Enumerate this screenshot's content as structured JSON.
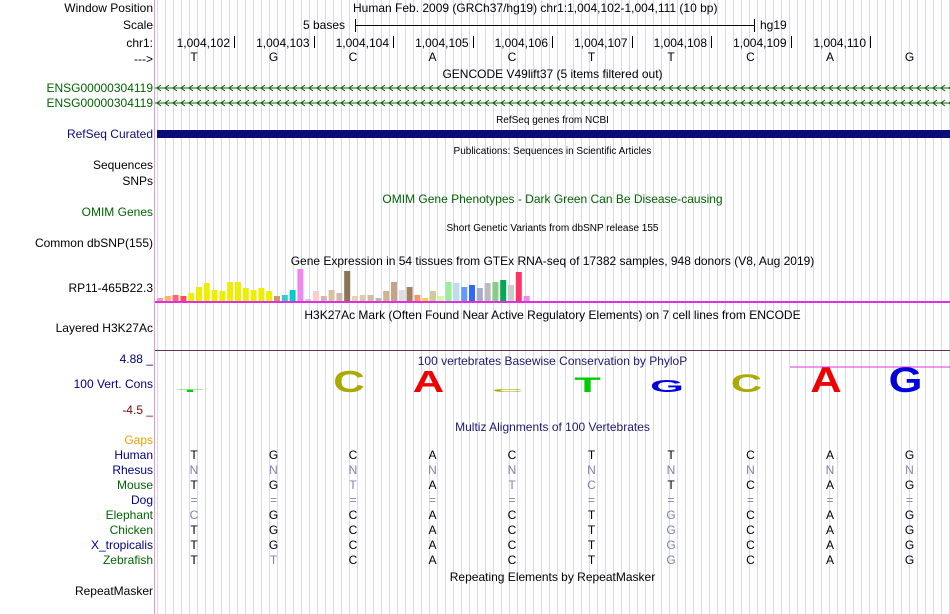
{
  "header": {
    "window_position_label": "Window Position",
    "scale_label": "Scale",
    "chrom_label": "chr1:",
    "strand_label": "--->",
    "assembly_text": "Human Feb. 2009 (GRCh37/hg19)   chr1:1,004,102-1,004,111 (10 bp)",
    "scale_text": "5 bases",
    "scale_db": "hg19"
  },
  "ruler": {
    "positions": [
      "1,004,102",
      "1,004,103",
      "1,004,104",
      "1,004,105",
      "1,004,106",
      "1,004,107",
      "1,004,108",
      "1,004,109",
      "1,004,110"
    ],
    "bases": [
      "T",
      "G",
      "C",
      "A",
      "C",
      "T",
      "T",
      "C",
      "A",
      "G"
    ]
  },
  "tracks": {
    "gencode": {
      "title": "GENCODE V49lift37 (5 items filtered out)",
      "items": [
        "ENSG00000304119",
        "ENSG00000304119"
      ]
    },
    "refseq": {
      "title": "RefSeq genes from NCBI",
      "label": "RefSeq Curated",
      "color": "#0c0c78"
    },
    "publications": {
      "title": "Publications: Sequences in Scientific Articles",
      "labels": [
        "Sequences",
        "SNPs"
      ]
    },
    "omim": {
      "title": "OMIM Gene Phenotypes - Dark Green Can Be Disease-causing",
      "label": "OMIM Genes",
      "color": "#006400"
    },
    "dbsnp": {
      "title": "Short Genetic Variants from dbSNP release 155",
      "label": "Common dbSNP(155)"
    },
    "gtex": {
      "title": "Gene Expression in 54 tissues from GTEx RNA-seq of 17382 samples, 948 donors (V8, Aug 2019)",
      "label": "RP11-465B22.3",
      "bars": [
        {
          "v": 0.1,
          "c": "#ff9999"
        },
        {
          "v": 0.15,
          "c": "#ffb366"
        },
        {
          "v": 0.2,
          "c": "#ff6666"
        },
        {
          "v": 0.15,
          "c": "#ff4d4d"
        },
        {
          "v": 0.25,
          "c": "#eeee00"
        },
        {
          "v": 0.45,
          "c": "#eeee00"
        },
        {
          "v": 0.55,
          "c": "#eeee00"
        },
        {
          "v": 0.35,
          "c": "#eeee00"
        },
        {
          "v": 0.3,
          "c": "#eeee00"
        },
        {
          "v": 0.6,
          "c": "#eeee00"
        },
        {
          "v": 0.6,
          "c": "#eeee00"
        },
        {
          "v": 0.4,
          "c": "#eeee00"
        },
        {
          "v": 0.35,
          "c": "#eeee00"
        },
        {
          "v": 0.4,
          "c": "#eeee00"
        },
        {
          "v": 0.3,
          "c": "#eeee00"
        },
        {
          "v": 0.15,
          "c": "#cc9966"
        },
        {
          "v": 0.2,
          "c": "#33cccc"
        },
        {
          "v": 0.35,
          "c": "#00cccc"
        },
        {
          "v": 1.0,
          "c": "#ee88ee"
        },
        {
          "v": 0.05,
          "c": "#cccccc"
        },
        {
          "v": 0.3,
          "c": "#ffcccc"
        },
        {
          "v": 0.15,
          "c": "#d9b3b3"
        },
        {
          "v": 0.35,
          "c": "#d9c1a0"
        },
        {
          "v": 0.25,
          "c": "#ccbbaa"
        },
        {
          "v": 0.95,
          "c": "#8b7355"
        },
        {
          "v": 0.15,
          "c": "#e6d2b4"
        },
        {
          "v": 0.2,
          "c": "#e0c9a6"
        },
        {
          "v": 0.2,
          "c": "#ccc0a0"
        },
        {
          "v": 0.1,
          "c": "#bbbbaa"
        },
        {
          "v": 0.3,
          "c": "#d2b48c"
        },
        {
          "v": 0.6,
          "c": "#c4a484"
        },
        {
          "v": 0.35,
          "c": "#dddddd"
        },
        {
          "v": 0.45,
          "c": "#a08060"
        },
        {
          "v": 0.2,
          "c": "#ee9966"
        },
        {
          "v": 0.1,
          "c": "#ffcc33"
        },
        {
          "v": 0.3,
          "c": "#cccc99"
        },
        {
          "v": 0.15,
          "c": "#ccff99"
        },
        {
          "v": 0.6,
          "c": "#99ee99"
        },
        {
          "v": 0.55,
          "c": "#bbddee"
        },
        {
          "v": 0.45,
          "c": "#6699ff"
        },
        {
          "v": 0.5,
          "c": "#3366ff"
        },
        {
          "v": 0.4,
          "c": "#aaaacc"
        },
        {
          "v": 0.55,
          "c": "#bbbbbb"
        },
        {
          "v": 0.6,
          "c": "#88cc88"
        },
        {
          "v": 0.65,
          "c": "#00aa55"
        },
        {
          "v": 0.5,
          "c": "#cccccc"
        },
        {
          "v": 0.9,
          "c": "#ff3366"
        },
        {
          "v": 0.15,
          "c": "#ee88ee"
        }
      ]
    },
    "h3k27ac": {
      "title": "H3K27Ac Mark (Often Found Near Active Regulatory Elements) on 7 cell lines from ENCODE",
      "label": "Layered H3K27Ac"
    },
    "conservation": {
      "title": "100 vertebrates Basewise Conservation by PhyloP",
      "label": "100 Vert. Cons",
      "max_label": "4.88 _",
      "min_label": "-4.5 _",
      "logo": [
        {
          "base": "T",
          "h": 0.1,
          "c": "#00cc00"
        },
        {
          "base": "G",
          "h": 0.0,
          "c": "#0000dd"
        },
        {
          "base": "C",
          "h": 0.85,
          "c": "#aaaa00"
        },
        {
          "base": "A",
          "h": 0.85,
          "c": "#ee0000"
        },
        {
          "base": "C",
          "h": 0.12,
          "c": "#aaaa00"
        },
        {
          "base": "T",
          "h": 0.6,
          "c": "#00cc00"
        },
        {
          "base": "G",
          "h": 0.5,
          "c": "#0000dd"
        },
        {
          "base": "C",
          "h": 0.7,
          "c": "#aaaa00"
        },
        {
          "base": "A",
          "h": 1.0,
          "c": "#ee0000"
        },
        {
          "base": "G",
          "h": 1.0,
          "c": "#0000dd"
        }
      ]
    },
    "multiz": {
      "title": "Multiz Alignments of 100 Vertebrates",
      "gaps_label": "Gaps",
      "species": [
        {
          "name": "Human",
          "color": "#000080",
          "seq": [
            "T",
            "G",
            "C",
            "A",
            "C",
            "T",
            "T",
            "C",
            "A",
            "G"
          ],
          "muted": [
            false,
            false,
            false,
            false,
            false,
            false,
            false,
            false,
            false,
            false
          ]
        },
        {
          "name": "Rhesus",
          "color": "#000080",
          "seq": [
            "N",
            "N",
            "N",
            "N",
            "N",
            "N",
            "N",
            "N",
            "N",
            "N"
          ],
          "muted": [
            true,
            true,
            true,
            true,
            true,
            true,
            true,
            true,
            true,
            true
          ]
        },
        {
          "name": "Mouse",
          "color": "#006400",
          "seq": [
            "T",
            "G",
            "T",
            "A",
            "T",
            "C",
            "T",
            "C",
            "A",
            "G"
          ],
          "muted": [
            false,
            false,
            true,
            false,
            true,
            true,
            false,
            false,
            false,
            false
          ]
        },
        {
          "name": "Dog",
          "color": "#000080",
          "seq": [
            "=",
            "=",
            "=",
            "=",
            "=",
            "=",
            "=",
            "=",
            "=",
            "="
          ],
          "muted": [
            true,
            true,
            true,
            true,
            true,
            true,
            true,
            true,
            true,
            true
          ]
        },
        {
          "name": "Elephant",
          "color": "#006400",
          "seq": [
            "C",
            "G",
            "C",
            "A",
            "C",
            "T",
            "G",
            "C",
            "A",
            "G"
          ],
          "muted": [
            true,
            false,
            false,
            false,
            false,
            false,
            true,
            false,
            false,
            false
          ]
        },
        {
          "name": "Chicken",
          "color": "#006400",
          "seq": [
            "T",
            "G",
            "C",
            "A",
            "C",
            "T",
            "G",
            "C",
            "A",
            "G"
          ],
          "muted": [
            false,
            false,
            false,
            false,
            false,
            false,
            true,
            false,
            false,
            false
          ]
        },
        {
          "name": "X_tropicalis",
          "color": "#000080",
          "seq": [
            "T",
            "G",
            "C",
            "A",
            "C",
            "T",
            "G",
            "C",
            "A",
            "G"
          ],
          "muted": [
            false,
            false,
            false,
            false,
            false,
            false,
            true,
            false,
            false,
            false
          ]
        },
        {
          "name": "Zebrafish",
          "color": "#006400",
          "seq": [
            "T",
            "T",
            "C",
            "A",
            "C",
            "T",
            "G",
            "C",
            "A",
            "G"
          ],
          "muted": [
            false,
            true,
            false,
            false,
            false,
            false,
            true,
            false,
            false,
            false
          ]
        }
      ]
    },
    "repeatmasker": {
      "title": "Repeating Elements by RepeatMasker",
      "label": "RepeatMasker"
    }
  }
}
